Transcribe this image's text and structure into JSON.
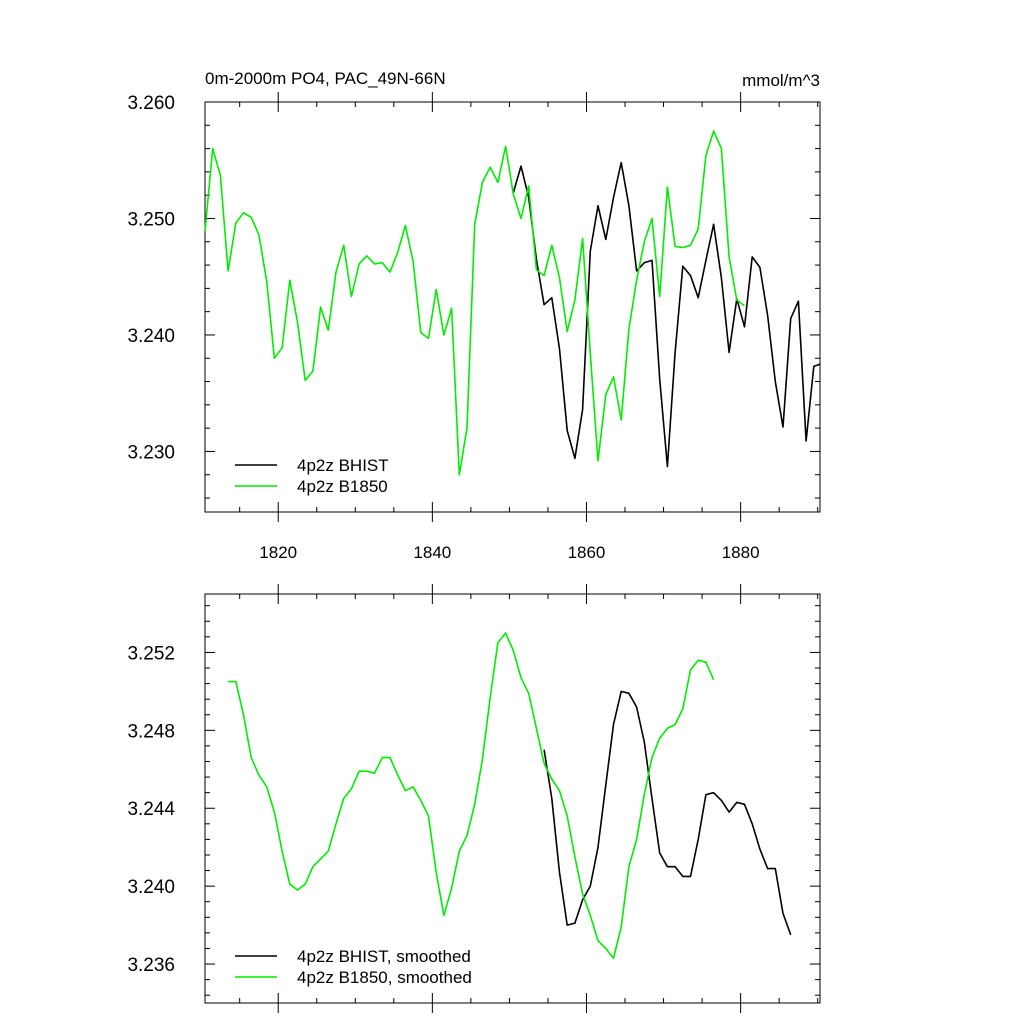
{
  "chart_data": [
    {
      "type": "line",
      "title": "0m-2000m PO4, PAC_49N-66N",
      "units": "mmol/m^3",
      "xlim": [
        1810.5,
        1890.3
      ],
      "ylim": [
        3.2248,
        3.26
      ],
      "xticks": [
        1820,
        1840,
        1860,
        1880
      ],
      "xtick_labels": [
        "1820",
        "1840",
        "1860",
        "1880"
      ],
      "yticks": [
        3.23,
        3.24,
        3.25,
        3.26
      ],
      "ytick_labels": [
        "3.230",
        "3.240",
        "3.250",
        "3.260"
      ],
      "legend_position": "bottom-left",
      "series": [
        {
          "name": "4p2z BHIST",
          "color": "#000000",
          "x": [
            1850.5,
            1851.5,
            1852.5,
            1853.5,
            1854.5,
            1855.5,
            1856.5,
            1857.5,
            1858.5,
            1859.5,
            1860.5,
            1861.5,
            1862.5,
            1863.5,
            1864.5,
            1865.5,
            1866.5,
            1867.5,
            1868.5,
            1869.5,
            1870.5,
            1871.5,
            1872.5,
            1873.5,
            1874.5,
            1875.5,
            1876.5,
            1877.5,
            1878.5,
            1879.5,
            1880.5,
            1881.5,
            1882.5,
            1883.5,
            1884.5,
            1885.5,
            1886.5,
            1887.5,
            1888.5,
            1889.5,
            1890.3
          ],
          "y": [
            3.2522,
            3.2545,
            3.2518,
            3.2465,
            3.2426,
            3.2432,
            3.2388,
            3.2318,
            3.2294,
            3.2336,
            3.2472,
            3.2511,
            3.2482,
            3.2518,
            3.2548,
            3.2511,
            3.2455,
            3.2462,
            3.2464,
            3.2362,
            3.2287,
            3.2385,
            3.2459,
            3.2451,
            3.2432,
            3.2464,
            3.2495,
            3.2449,
            3.2385,
            3.2431,
            3.2407,
            3.2467,
            3.2458,
            3.2417,
            3.236,
            3.2321,
            3.2414,
            3.2429,
            3.2309,
            3.2373,
            3.2375
          ]
        },
        {
          "name": "4p2z B1850",
          "color": "#00ee00",
          "x": [
            1810.5,
            1811.5,
            1812.5,
            1813.5,
            1814.5,
            1815.5,
            1816.5,
            1817.5,
            1818.5,
            1819.5,
            1820.5,
            1821.5,
            1822.5,
            1823.5,
            1824.5,
            1825.5,
            1826.5,
            1827.5,
            1828.5,
            1829.5,
            1830.5,
            1831.5,
            1832.5,
            1833.5,
            1834.5,
            1835.5,
            1836.5,
            1837.5,
            1838.5,
            1839.5,
            1840.5,
            1841.5,
            1842.5,
            1843.5,
            1844.5,
            1845.5,
            1846.5,
            1847.5,
            1848.5,
            1849.5,
            1850.5,
            1851.5,
            1852.5,
            1853.5,
            1854.5,
            1855.5,
            1856.5,
            1857.5,
            1858.5,
            1859.5,
            1860.5,
            1861.5,
            1862.5,
            1863.5,
            1864.5,
            1865.5,
            1866.5,
            1867.5,
            1868.5,
            1869.5,
            1870.5,
            1871.5,
            1872.5,
            1873.5,
            1874.5,
            1875.5,
            1876.5,
            1877.5,
            1878.5,
            1879.5,
            1880.5
          ],
          "y": [
            3.2489,
            3.256,
            3.2537,
            3.2455,
            3.2496,
            3.2505,
            3.2501,
            3.2486,
            3.2446,
            3.238,
            3.2389,
            3.2447,
            3.2411,
            3.2361,
            3.2369,
            3.2424,
            3.2404,
            3.2454,
            3.2477,
            3.2433,
            3.2461,
            3.2468,
            3.2461,
            3.2462,
            3.2454,
            3.2471,
            3.2494,
            3.2463,
            3.2402,
            3.2397,
            3.2439,
            3.24,
            3.2423,
            3.228,
            3.232,
            3.2495,
            3.2531,
            3.2544,
            3.2531,
            3.2562,
            3.2521,
            3.25,
            3.2528,
            3.2456,
            3.2451,
            3.2477,
            3.2449,
            3.2403,
            3.243,
            3.2483,
            3.2384,
            3.2292,
            3.2349,
            3.2364,
            3.2327,
            3.2405,
            3.2447,
            3.248,
            3.25,
            3.2433,
            3.2527,
            3.2476,
            3.2475,
            3.2477,
            3.2491,
            3.2554,
            3.2575,
            3.256,
            3.2467,
            3.243,
            3.2425
          ]
        }
      ]
    },
    {
      "type": "line",
      "xlim": [
        1810.5,
        1890.3
      ],
      "ylim": [
        3.234,
        3.255
      ],
      "xticks": [
        1820,
        1840,
        1860,
        1880
      ],
      "yticks": [
        3.236,
        3.24,
        3.244,
        3.248,
        3.252
      ],
      "ytick_labels": [
        "3.236",
        "3.240",
        "3.244",
        "3.248",
        "3.252"
      ],
      "legend_position": "bottom-left",
      "series": [
        {
          "name": "4p2z BHIST, smoothed",
          "color": "#000000",
          "x": [
            1854.5,
            1855.5,
            1856.5,
            1857.5,
            1858.5,
            1859.5,
            1860.5,
            1861.5,
            1862.5,
            1863.5,
            1864.5,
            1865.5,
            1866.5,
            1867.5,
            1868.5,
            1869.5,
            1870.5,
            1871.5,
            1872.5,
            1873.5,
            1874.5,
            1875.5,
            1876.5,
            1877.5,
            1878.5,
            1879.5,
            1880.5,
            1881.5,
            1882.5,
            1883.5,
            1884.5,
            1885.5,
            1886.5
          ],
          "y": [
            3.247,
            3.2445,
            3.2407,
            3.238,
            3.2381,
            3.2393,
            3.24,
            3.242,
            3.2452,
            3.2483,
            3.25,
            3.2499,
            3.2492,
            3.2474,
            3.2445,
            3.2417,
            3.241,
            3.241,
            3.2405,
            3.2405,
            3.2424,
            3.2447,
            3.2448,
            3.2444,
            3.2438,
            3.2443,
            3.2442,
            3.2432,
            3.2419,
            3.2409,
            3.2409,
            3.2386,
            3.2375
          ]
        },
        {
          "name": "4p2z B1850, smoothed",
          "color": "#00ee00",
          "x": [
            1813.5,
            1814.5,
            1815.5,
            1816.5,
            1817.5,
            1818.5,
            1819.5,
            1820.5,
            1821.5,
            1822.5,
            1823.5,
            1824.5,
            1825.5,
            1826.5,
            1827.5,
            1828.5,
            1829.5,
            1830.5,
            1831.5,
            1832.5,
            1833.5,
            1834.5,
            1835.5,
            1836.5,
            1837.5,
            1838.5,
            1839.5,
            1840.5,
            1841.5,
            1842.5,
            1843.5,
            1844.5,
            1845.5,
            1846.5,
            1847.5,
            1848.5,
            1849.5,
            1850.5,
            1851.5,
            1852.5,
            1853.5,
            1854.5,
            1855.5,
            1856.5,
            1857.5,
            1858.5,
            1859.5,
            1860.5,
            1861.5,
            1862.5,
            1863.5,
            1864.5,
            1865.5,
            1866.5,
            1867.5,
            1868.5,
            1869.5,
            1870.5,
            1871.5,
            1872.5,
            1873.5,
            1874.5,
            1875.5,
            1876.5
          ],
          "y": [
            3.2505,
            3.2505,
            3.2488,
            3.2466,
            3.2457,
            3.2451,
            3.2438,
            3.2418,
            3.2401,
            3.2398,
            3.2401,
            3.241,
            3.2414,
            3.2418,
            3.2432,
            3.2445,
            3.245,
            3.2459,
            3.2459,
            3.2458,
            3.2466,
            3.2466,
            3.2457,
            3.2449,
            3.2451,
            3.2444,
            3.2436,
            3.2407,
            3.2385,
            3.2399,
            3.2418,
            3.2426,
            3.2442,
            3.2465,
            3.2497,
            3.2525,
            3.253,
            3.2521,
            3.2507,
            3.2499,
            3.2481,
            3.2463,
            3.2455,
            3.2449,
            3.2436,
            3.2415,
            3.2396,
            3.2385,
            3.2372,
            3.2368,
            3.2363,
            3.2379,
            3.241,
            3.2424,
            3.2447,
            3.2466,
            3.2476,
            3.2481,
            3.2483,
            3.2491,
            3.2511,
            3.2516,
            3.2515,
            3.2506
          ]
        }
      ]
    }
  ]
}
